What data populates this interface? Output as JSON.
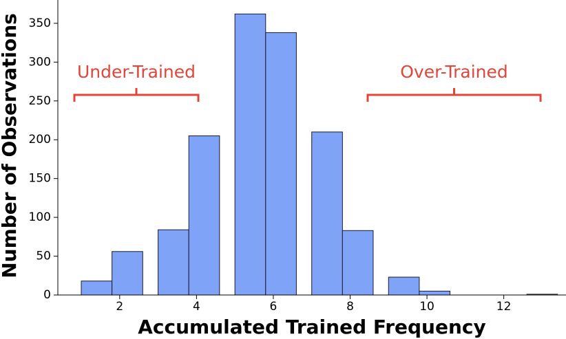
{
  "chart_data": {
    "type": "histogram",
    "xlabel": "Accumulated Trained Frequency",
    "ylabel": "Number of Observations",
    "bins": [
      1.0,
      1.8,
      2.6,
      3.0,
      3.8,
      4.6,
      5.0,
      5.8,
      6.6,
      7.0,
      7.8,
      8.6,
      9.0,
      9.8,
      10.6,
      12.6,
      13.4
    ],
    "counts": [
      18,
      56,
      0,
      84,
      205,
      0,
      362,
      338,
      0,
      210,
      83,
      0,
      23,
      5,
      0,
      1
    ],
    "color": "#7fa4f7",
    "edgecolor": "#1a1a2e",
    "xlim": [
      0.39,
      13.62
    ],
    "ylim": [
      0,
      380
    ],
    "xticks": [
      2,
      4,
      6,
      8,
      10,
      12
    ],
    "yticks": [
      0,
      50,
      100,
      150,
      200,
      250,
      300,
      350
    ],
    "annotations": [
      "Under-Trained",
      "Over-Trained"
    ],
    "annotation_color": "#e0463a"
  }
}
